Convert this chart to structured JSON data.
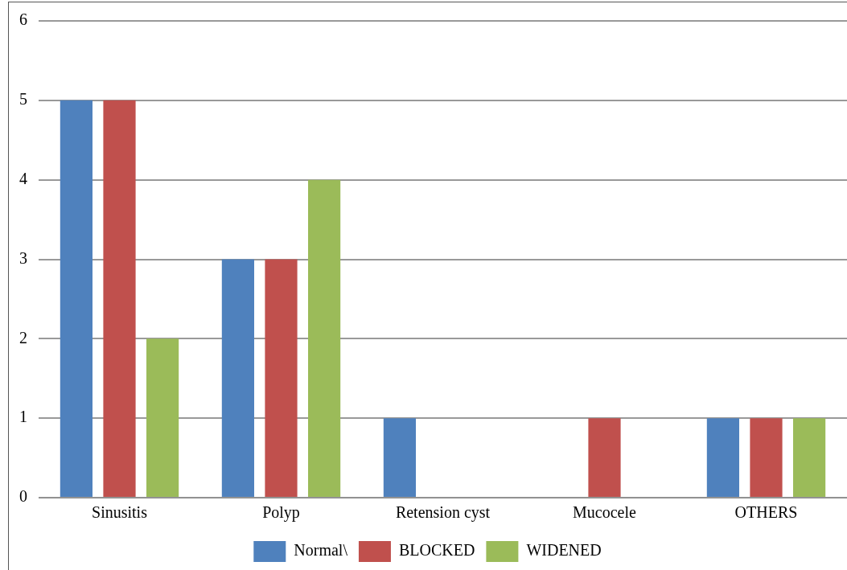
{
  "chart_data": {
    "type": "bar",
    "categories": [
      "Sinusitis",
      "Polyp",
      "Retension cyst",
      "Mucocele",
      "OTHERS"
    ],
    "series": [
      {
        "name": "Normal\\",
        "color": "#4f81bd",
        "values": [
          5,
          3,
          1,
          0,
          1
        ]
      },
      {
        "name": "BLOCKED",
        "color": "#c0504d",
        "values": [
          5,
          3,
          0,
          1,
          1
        ]
      },
      {
        "name": "WIDENED",
        "color": "#9bbb59",
        "values": [
          2,
          4,
          0,
          0,
          1
        ]
      }
    ],
    "ylim": [
      0,
      6
    ],
    "yticks": [
      0,
      1,
      2,
      3,
      4,
      5,
      6
    ],
    "grid": "y",
    "legend": "bottom"
  }
}
